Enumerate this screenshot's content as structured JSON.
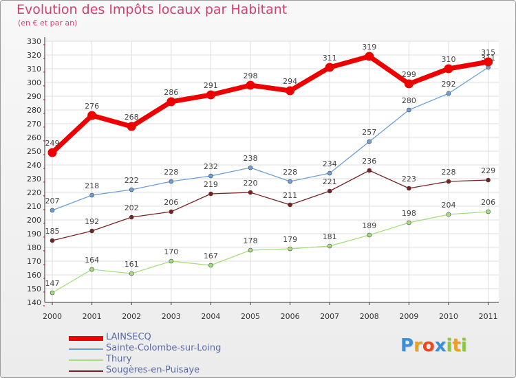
{
  "header": {
    "title": "Evolution des Impôts locaux par Habitant",
    "subtitle": "(en € et par an)"
  },
  "logo": {
    "letters": [
      "P",
      "r",
      "o",
      "x",
      "i",
      "t",
      "i"
    ],
    "colors": [
      "#3a8fd6",
      "#e8a21d",
      "#e84a1d",
      "#3a8fd6",
      "#8cc63f",
      "#e8a21d",
      "#8cc63f"
    ]
  },
  "chart_data": {
    "type": "line",
    "x": [
      "2000",
      "2001",
      "2002",
      "2003",
      "2004",
      "2005",
      "2006",
      "2007",
      "2008",
      "2009",
      "2010",
      "2011"
    ],
    "ylim": [
      140,
      330
    ],
    "ytick_step": 10,
    "grid": true,
    "legend_position": "bottom-left",
    "series": [
      {
        "name": "LAINSECQ",
        "color": "#ee0000",
        "emphasis": true,
        "values": [
          249,
          276,
          268,
          286,
          291,
          298,
          294,
          311,
          319,
          299,
          310,
          315
        ]
      },
      {
        "name": "Sainte-Colombe-sur-Loing",
        "color": "#6b9fd6",
        "values": [
          207,
          218,
          222,
          228,
          232,
          238,
          228,
          234,
          257,
          280,
          292,
          311
        ]
      },
      {
        "name": "Thury",
        "color": "#a4de7a",
        "values": [
          147,
          164,
          161,
          170,
          167,
          178,
          179,
          181,
          189,
          198,
          204,
          206
        ]
      },
      {
        "name": "Sougères-en-Puisaye",
        "color": "#7a2020",
        "values": [
          185,
          192,
          202,
          206,
          219,
          220,
          211,
          221,
          236,
          223,
          228,
          229
        ]
      }
    ]
  }
}
